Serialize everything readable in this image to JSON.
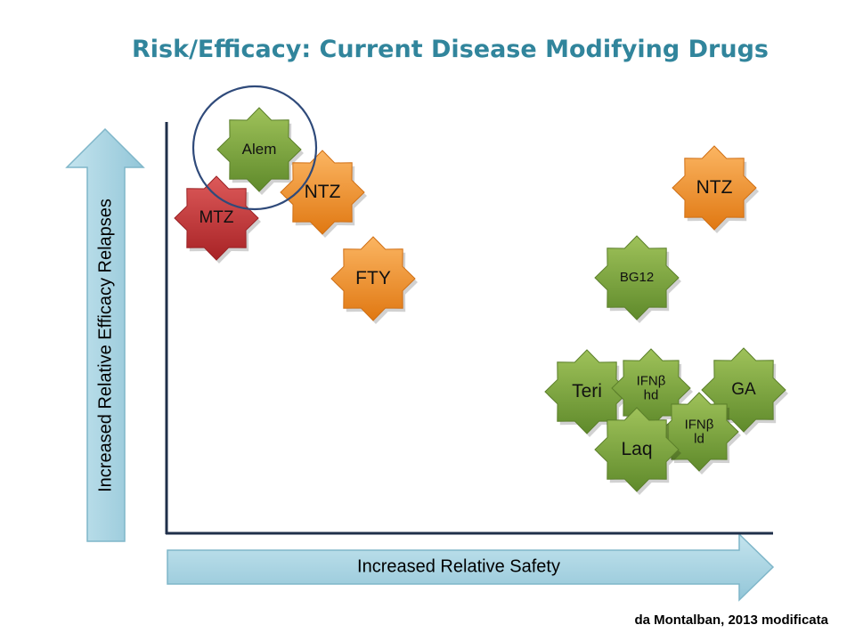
{
  "slide": {
    "title": "Risk/Efficacy: Current Disease Modifying Drugs",
    "y_axis_label": "Increased Relative Efficacy Relapses",
    "x_axis_label": "Increased Relative Safety",
    "source": "da Montalban, 2013 modificata"
  },
  "colors": {
    "title": "#31859c",
    "arrow_fill": "#a5d3e0",
    "arrow_stroke": "#7fb6c9",
    "axis": "#1f2f4a",
    "highlight_circle": "#2f4a7a",
    "green": "#76a03a",
    "orange": "#f39530",
    "red": "#c8383b"
  },
  "drugs": [
    {
      "id": "mtz",
      "lines": [
        "MTZ"
      ],
      "color": "red"
    },
    {
      "id": "alem",
      "lines": [
        "Alem"
      ],
      "color": "green",
      "highlighted": true
    },
    {
      "id": "ntz-left",
      "lines": [
        "NTZ"
      ],
      "color": "orange"
    },
    {
      "id": "fty",
      "lines": [
        "FTY"
      ],
      "color": "orange"
    },
    {
      "id": "ntz-right",
      "lines": [
        "NTZ"
      ],
      "color": "orange"
    },
    {
      "id": "bg12",
      "lines": [
        "BG12"
      ],
      "color": "green"
    },
    {
      "id": "teri",
      "lines": [
        "Teri"
      ],
      "color": "green"
    },
    {
      "id": "ifnb-hd",
      "lines": [
        "IFNβ",
        "hd"
      ],
      "color": "green"
    },
    {
      "id": "ga",
      "lines": [
        "GA"
      ],
      "color": "green"
    },
    {
      "id": "ifnb-ld",
      "lines": [
        "IFNβ",
        "ld"
      ],
      "color": "green"
    },
    {
      "id": "laq",
      "lines": [
        "Laq"
      ],
      "color": "green"
    }
  ]
}
